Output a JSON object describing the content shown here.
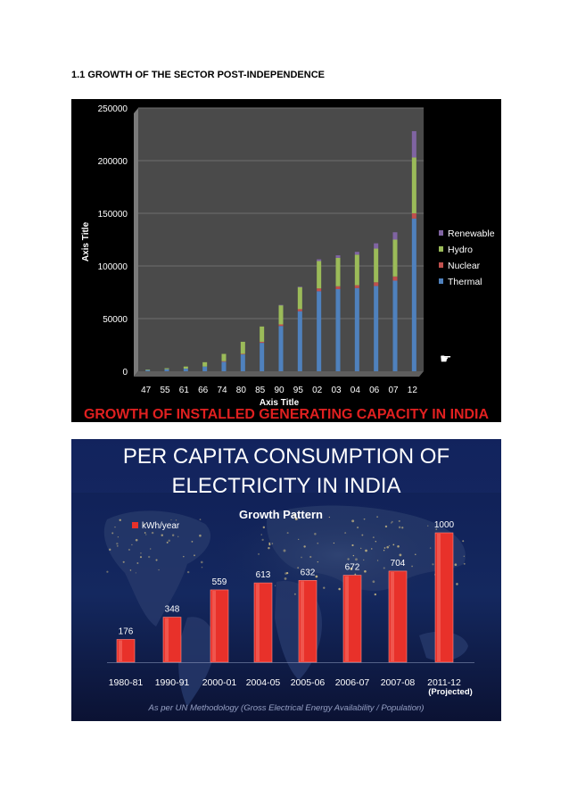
{
  "heading": "1.1 GROWTH OF THE SECTOR POST-INDEPENDENCE",
  "colors": {
    "thermal": "#4f81bd",
    "nuclear": "#c0504d",
    "hydro": "#9bbb59",
    "renewable": "#8064a2",
    "banner_red": "#e02020",
    "bar_red": "#e8312a"
  },
  "chart_data": [
    {
      "type": "bar",
      "stacked": true,
      "title": "GROWTH OF INSTALLED GENERATING CAPACITY IN INDIA",
      "xlabel": "Axis Title",
      "ylabel": "Axis Title",
      "ylim": [
        0,
        250000
      ],
      "yticks": [
        "0",
        "50000",
        "100000",
        "150000",
        "200000",
        "250000"
      ],
      "grid": true,
      "legend_position": "right",
      "categories": [
        "47",
        "55",
        "61",
        "66",
        "74",
        "80",
        "85",
        "90",
        "95",
        "02",
        "03",
        "04",
        "06",
        "07",
        "12"
      ],
      "series": [
        {
          "name": "Thermal",
          "values": [
            1200,
            2000,
            2500,
            4500,
            9000,
            16000,
            27000,
            43000,
            57000,
            76000,
            78000,
            79000,
            81000,
            86000,
            145000
          ]
        },
        {
          "name": "Nuclear",
          "values": [
            0,
            0,
            0,
            0,
            600,
            600,
            1000,
            1500,
            2000,
            2700,
            2700,
            2700,
            3500,
            4000,
            5000
          ]
        },
        {
          "name": "Hydro",
          "values": [
            500,
            900,
            2000,
            4100,
            6900,
            11400,
            14500,
            18300,
            20900,
            26000,
            27000,
            29000,
            32000,
            35000,
            53000
          ]
        },
        {
          "name": "Renewable",
          "values": [
            0,
            0,
            0,
            0,
            0,
            0,
            0,
            200,
            500,
            1600,
            2400,
            2700,
            5000,
            7000,
            25000
          ]
        }
      ]
    },
    {
      "type": "bar",
      "title": "PER CAPITA CONSUMPTION OF ELECTRICITY IN INDIA",
      "subtitle": "Growth Pattern",
      "categories": [
        "1980-81",
        "1990-91",
        "2000-01",
        "2004-05",
        "2005-06",
        "2006-07",
        "2007-08",
        "2011-12"
      ],
      "category_note": "(Projected)",
      "series": [
        {
          "name": "kWh/year",
          "values": [
            176,
            348,
            559,
            613,
            632,
            672,
            704,
            1000
          ]
        }
      ],
      "ylim": [
        0,
        1000
      ],
      "grid": false,
      "legend_position": "top-left",
      "footnote": "As per UN Methodology (Gross Electrical Energy Availability / Population)"
    }
  ]
}
